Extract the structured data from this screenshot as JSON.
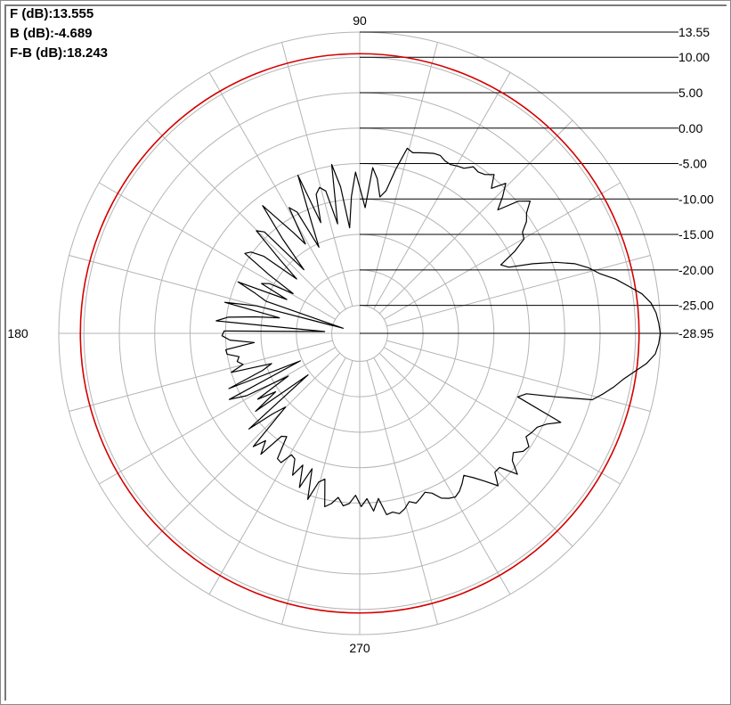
{
  "stats": {
    "front": "F (dB):13.555",
    "back": "B (dB):-4.689",
    "front_to_back": "F-B (dB):18.243"
  },
  "colors": {
    "grid": "#b4b4b4",
    "pattern": "#000000",
    "reference_circle": "#d40000",
    "leader_line": "#000000"
  },
  "chart_data": {
    "type": "polar-line",
    "angle_labels": [
      "90",
      "180",
      "270"
    ],
    "radial_ticks": [
      13.55,
      10.0,
      5.0,
      0.0,
      -5.0,
      -10.0,
      -15.0,
      -20.0,
      -25.0,
      -28.95
    ],
    "radial_tick_labels": [
      "13.55",
      "10.00",
      "5.00",
      "0.00",
      "-5.00",
      "-10.00",
      "-15.00",
      "-20.00",
      "-25.00",
      "-28.95"
    ],
    "rlim": [
      -28.95,
      13.55
    ],
    "angular_grid_step_deg": 15,
    "reference_circle_db": 10.5,
    "series": [
      {
        "values_db": [
          13.5,
          13.3,
          13.0,
          12.4,
          11.3,
          9.6,
          8.0,
          6.0,
          4.7,
          3.0,
          0.5,
          -2.6,
          -5.9,
          -6.8,
          -4.2,
          -2.2,
          -1.9,
          -0.6,
          0.1,
          1.5,
          0.2,
          -2.8,
          -1.0,
          0.6,
          -1.3,
          0.4,
          -0.4,
          -0.7,
          -0.5,
          -1.4,
          -1.6,
          -1.9,
          -1.8,
          -1.4,
          -1.5,
          -1.8,
          -2.1,
          -2.4,
          -2.0,
          -5.2,
          -8.5,
          -9.5,
          -7.0,
          -5.5,
          -11.2,
          -9.0,
          -6.2,
          -9.6,
          -14.0,
          -8.1,
          -4.8,
          -13.2,
          -8.3,
          -7.6,
          -8.4,
          -12.4,
          -5.0,
          -11.5,
          -15.5,
          -9.7,
          -8.6,
          -14.2,
          -12.0,
          -9.6,
          -6.3,
          -11.8,
          -17.0,
          -9.3,
          -8.4,
          -13.5,
          -17.2,
          -11.6,
          -9.8,
          -9.2,
          -13.8,
          -18.0,
          -14.4,
          -13.4,
          -17.6,
          -10.3,
          -13.2,
          -15.0,
          -26.5,
          -13.9,
          -9.4,
          -17.4,
          -14.0,
          -10.2,
          -8.6,
          -24.0,
          -9.8,
          -9.5,
          -10.6,
          -14.0,
          -9.9,
          -10.0,
          -11.6,
          -11.2,
          -11.9,
          -10.0,
          -15.8,
          -14.3,
          -8.9,
          -19.7,
          -8.3,
          -10.7,
          -17.2,
          -11.8,
          -14.5,
          -10.6,
          -19.6,
          -8.3,
          -12.2,
          -14.2,
          -7.0,
          -8.8,
          -6.9,
          -10.7,
          -11.1,
          -7.8,
          -7.6,
          -9.3,
          -9.0,
          -6.8,
          -8.7,
          -5.6,
          -8.7,
          -4.4,
          -7.2,
          -7.8,
          -4.0,
          -4.6,
          -5.6,
          -4.5,
          -4.9,
          -6.1,
          -4.5,
          -5.6,
          -3.8,
          -5.5,
          -3.1,
          -3.3,
          -2.9,
          -3.4,
          -4.2,
          -3.7,
          -4.2,
          -4.7,
          -4.2,
          -3.0,
          -2.5,
          -2.2,
          -2.6,
          -3.3,
          -4.1,
          -3.0,
          -1.6,
          0.1,
          -1.6,
          -1.6,
          0.9,
          -0.9,
          -1.5,
          -0.5,
          -0.2,
          -1.3,
          -0.9,
          -0.6,
          0.4,
          2.1,
          -4.9,
          -3.9,
          0.2,
          5.2,
          6.5,
          7.7,
          8.8,
          10.2,
          11.8,
          12.9,
          13.3
        ]
      }
    ]
  }
}
